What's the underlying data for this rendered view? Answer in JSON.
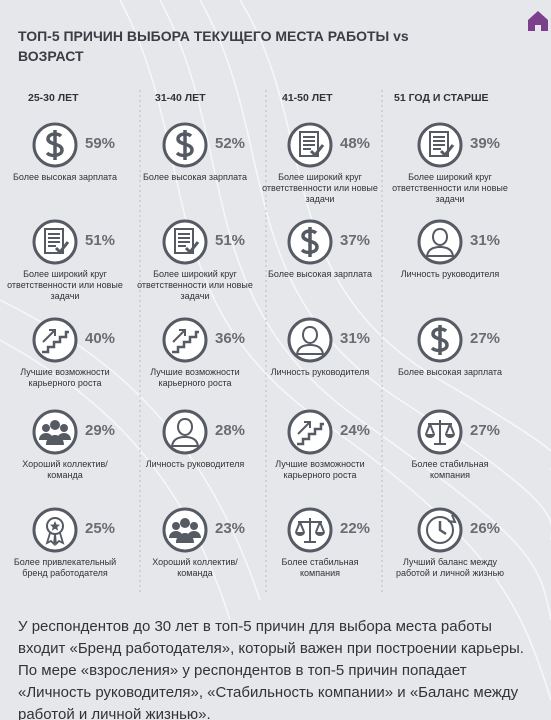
{
  "title": "ТОП-5 ПРИЧИН ВЫБОРА ТЕКУЩЕГО МЕСТА РАБОТЫ vs ВОЗРАСТ",
  "columns": [
    {
      "header": "25-30 ЛЕТ",
      "items": [
        {
          "percent": "59%",
          "label": "Более высокая зарплата"
        },
        {
          "percent": "51%",
          "label": "Более широкий круг ответственности или новые задачи"
        },
        {
          "percent": "40%",
          "label": "Лучшие возможности карьерного роста"
        },
        {
          "percent": "29%",
          "label": "Хороший коллектив/ команда"
        },
        {
          "percent": "25%",
          "label": "Более привлекательный бренд работодателя"
        }
      ]
    },
    {
      "header": "31-40 ЛЕТ",
      "items": [
        {
          "percent": "52%",
          "label": "Более высокая зарплата"
        },
        {
          "percent": "51%",
          "label": "Более широкий круг ответственности или новые задачи"
        },
        {
          "percent": "36%",
          "label": "Лучшие возможности карьерного роста"
        },
        {
          "percent": "28%",
          "label": "Личность руководителя"
        },
        {
          "percent": "23%",
          "label": "Хороший коллектив/ команда"
        }
      ]
    },
    {
      "header": "41-50 ЛЕТ",
      "items": [
        {
          "percent": "48%",
          "label": "Более широкий круг ответственности или новые задачи"
        },
        {
          "percent": "37%",
          "label": "Более высокая зарплата"
        },
        {
          "percent": "31%",
          "label": "Личность руководителя"
        },
        {
          "percent": "24%",
          "label": "Лучшие возможности карьерного роста"
        },
        {
          "percent": "22%",
          "label": "Более стабильная компания"
        }
      ]
    },
    {
      "header": "51 ГОД И СТАРШЕ",
      "items": [
        {
          "percent": "39%",
          "label": "Более широкий круг ответственности или новые задачи"
        },
        {
          "percent": "31%",
          "label": "Личность руководителя"
        },
        {
          "percent": "27%",
          "label": "Более высокая зарплата"
        },
        {
          "percent": "27%",
          "label": "Более стабильная компания"
        },
        {
          "percent": "26%",
          "label": "Лучший баланс между работой и личной жизнью"
        }
      ]
    }
  ],
  "footer_text": "У респондентов до 30 лет в топ-5 причин для выбора места работы входит «Бренд работодателя», который важен при построении карьеры. По мере «взросления» у респондентов в топ-5 причин попадает «Личность руководителя», «Стабильность компании» и «Баланс между работой и личной жизнью»."
}
